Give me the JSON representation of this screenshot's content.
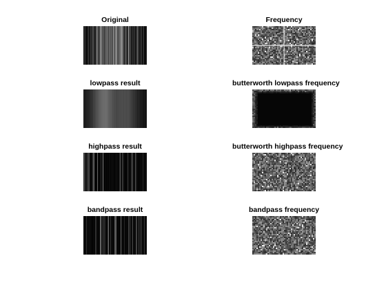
{
  "figure": {
    "panels": [
      {
        "title": "Original",
        "image": "vertical-stripes",
        "tone": "mixed"
      },
      {
        "title": "Frequency",
        "image": "spectrum-cross",
        "tone": "gray"
      },
      {
        "title": "lowpass result",
        "image": "vertical-stripes",
        "tone": "blurred"
      },
      {
        "title": "butterworth lowpass frequency",
        "image": "spectrum",
        "tone": "dark"
      },
      {
        "title": "highpass result",
        "image": "vertical-stripes",
        "tone": "sparse"
      },
      {
        "title": "butterworth highpass frequency",
        "image": "spectrum",
        "tone": "gray"
      },
      {
        "title": "bandpass result",
        "image": "vertical-stripes",
        "tone": "sparse"
      },
      {
        "title": "bandpass frequency",
        "image": "spectrum",
        "tone": "gray"
      }
    ]
  }
}
